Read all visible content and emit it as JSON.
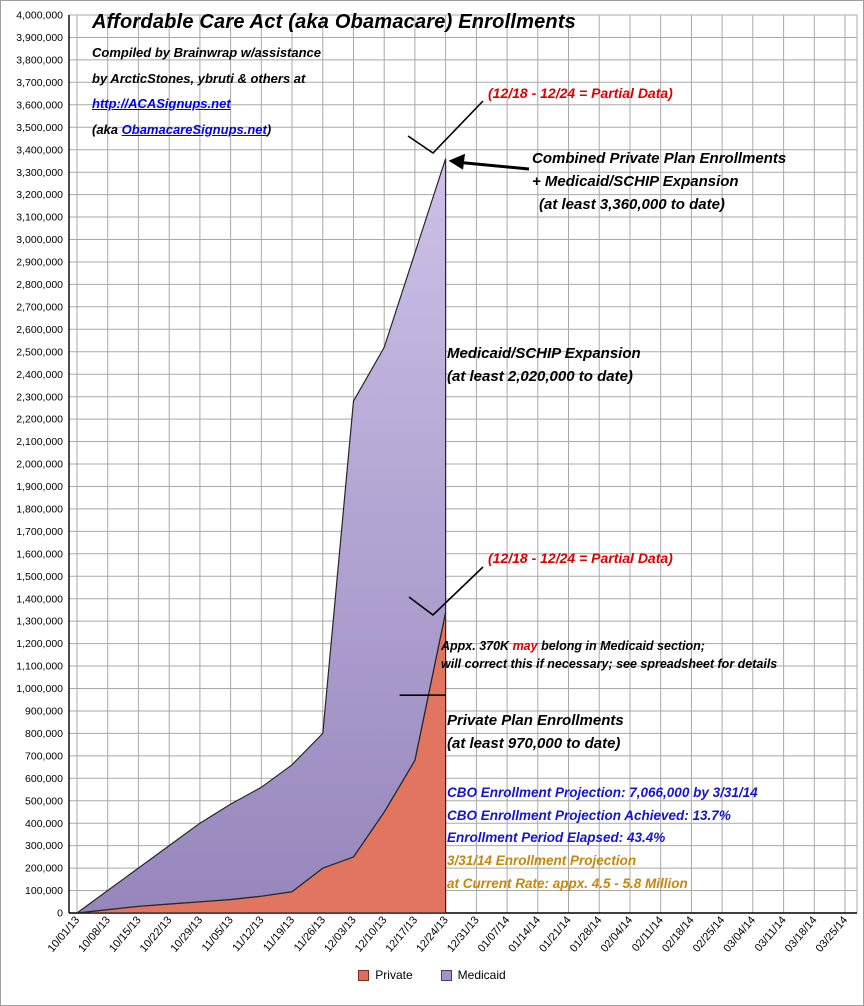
{
  "header": {
    "title": "Affordable Care Act (aka Obamacare) Enrollments",
    "credit_line1": "Compiled by Brainwrap w/assistance",
    "credit_line2": "by ArcticStones, ybruti & others at",
    "credit_link": "http://ACASignups.net",
    "credit_aka_prefix": "(aka ",
    "credit_aka_link": "ObamacareSignups.net",
    "credit_aka_suffix": ")"
  },
  "annotations": {
    "partial_top": "(12/18 - 12/24 = Partial Data)",
    "partial_mid": "(12/18 - 12/24 = Partial Data)",
    "combined_line1": "Combined Private Plan Enrollments",
    "combined_line2": "+ Medicaid/SCHIP Expansion",
    "combined_line3": "(at least 3,360,000 to date)",
    "medicaid_line1": "Medicaid/SCHIP Expansion",
    "medicaid_line2": "(at least 2,020,000 to date)",
    "note370_pre": "Appx. 370K ",
    "note370_red": "may",
    "note370_post": " belong in Medicaid section;",
    "note370_line2": "will correct this if necessary; see spreadsheet for details",
    "private_line1": "Private Plan Enrollments",
    "private_line2": "(at least 970,000 to date)",
    "cbo_line1": "CBO Enrollment Projection: 7,066,000 by 3/31/14",
    "cbo_line2": "CBO Enrollment Projection Achieved: 13.7%",
    "cbo_line3": "Enrollment Period Elapsed: 43.4%",
    "proj_line1": "3/31/14 Enrollment Projection",
    "proj_line2": "at Current Rate: appx. 4.5 - 5.8 Million"
  },
  "legend": {
    "private": "Private",
    "medicaid": "Medicaid"
  },
  "colors": {
    "private_fill": "#E1755F",
    "private_stroke": "#262626",
    "medicaid_fill_top": "#CDC1E8",
    "medicaid_fill_bottom": "#9686BC",
    "medicaid_stroke": "#262626",
    "legend_private_fill": "#D9705A",
    "legend_private_border": "#7A2E22",
    "legend_medicaid_fill": "#A394C8",
    "legend_medicaid_border": "#4A3C66",
    "annotation_red": "#DD0000",
    "annotation_blue": "#1414D2",
    "annotation_orange": "#C8860B",
    "link_blue": "#0000EE",
    "grid": "#A9A9A9",
    "axis": "#000000"
  },
  "chart_data": {
    "type": "area",
    "stacked": true,
    "title": "Affordable Care Act (aka Obamacare) Enrollments",
    "ylim": [
      0,
      4000000
    ],
    "ytick_step": 100000,
    "grid": true,
    "legend_position": "bottom",
    "categories": [
      "10/01/13",
      "10/08/13",
      "10/15/13",
      "10/22/13",
      "10/29/13",
      "11/05/13",
      "11/12/13",
      "11/19/13",
      "11/26/13",
      "12/03/13",
      "12/10/13",
      "12/17/13",
      "12/24/13",
      "12/31/13",
      "01/07/14",
      "01/14/14",
      "01/21/14",
      "01/28/14",
      "02/04/14",
      "02/11/14",
      "02/18/14",
      "02/25/14",
      "03/04/14",
      "03/11/14",
      "03/18/14",
      "03/25/14"
    ],
    "series": [
      {
        "name": "Private",
        "values": [
          0,
          15000,
          30000,
          40000,
          50000,
          60000,
          75000,
          95000,
          200000,
          250000,
          450000,
          680000,
          1340000
        ]
      },
      {
        "name": "Medicaid",
        "values": [
          0,
          85000,
          170000,
          260000,
          350000,
          425000,
          485000,
          565000,
          600000,
          2030000,
          2070000,
          2260000,
          2020000
        ]
      }
    ],
    "private_reference_line": 970000
  }
}
